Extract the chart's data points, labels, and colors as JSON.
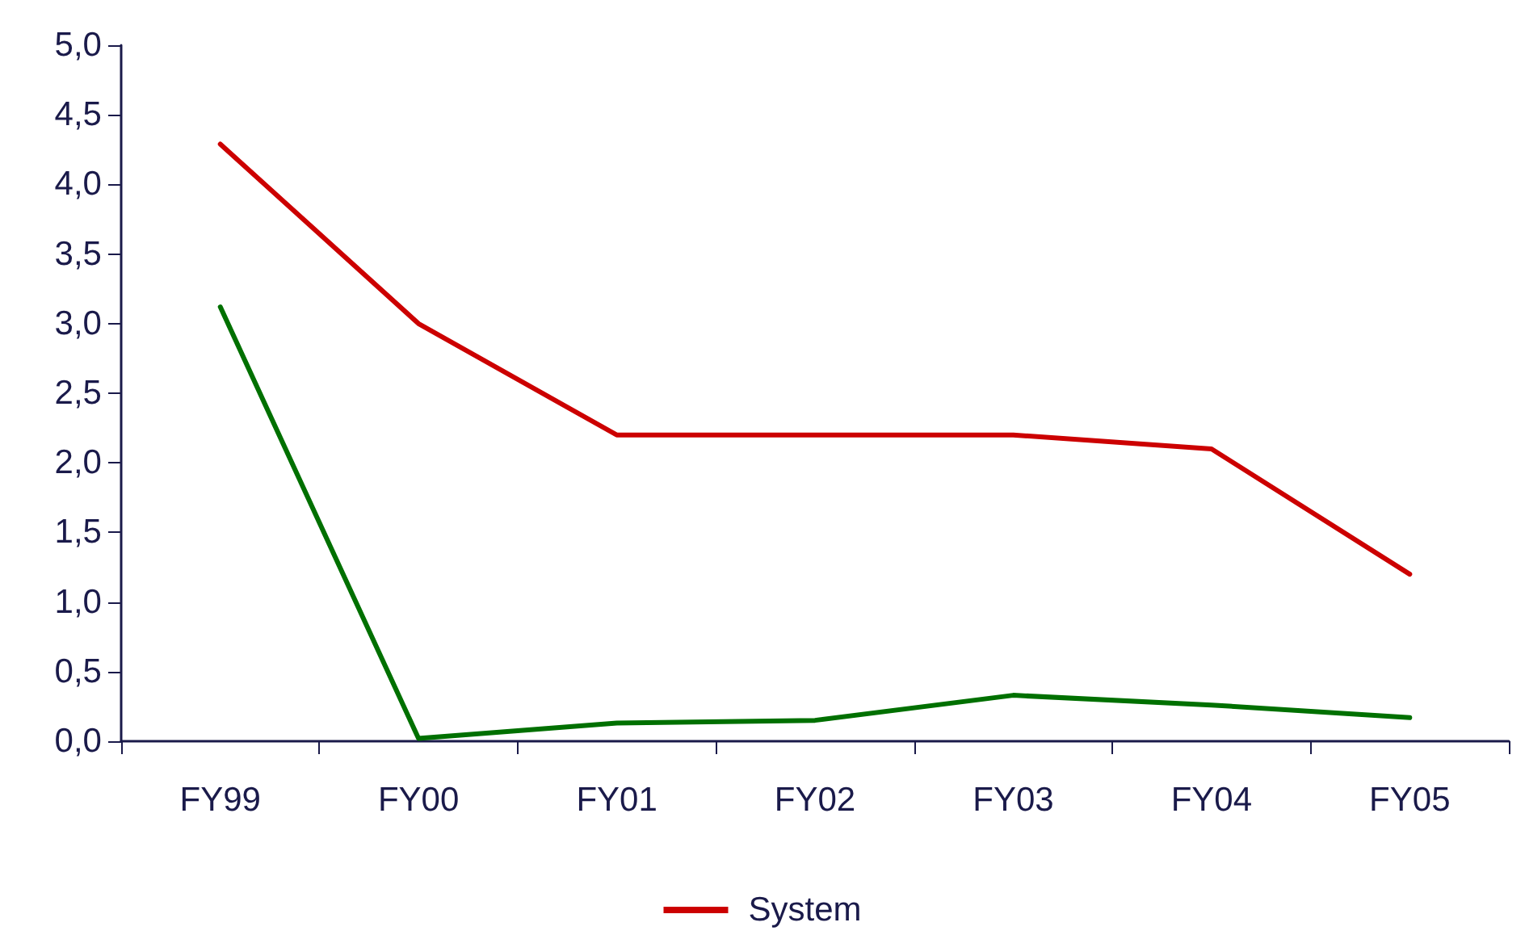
{
  "chart_data": {
    "type": "line",
    "categories": [
      "FY99",
      "FY00",
      "FY01",
      "FY02",
      "FY03",
      "FY04",
      "FY05"
    ],
    "series": [
      {
        "color": "#007000",
        "values": [
          3.12,
          0.02,
          0.13,
          0.15,
          0.33,
          0.26,
          0.17
        ]
      },
      {
        "name": "System",
        "color": "#cc0000",
        "values": [
          4.29,
          3.0,
          2.2,
          2.2,
          2.2,
          2.1,
          1.2
        ]
      }
    ],
    "ylim": [
      0,
      5
    ],
    "yticks": [
      {
        "value": 0,
        "label": "0,0"
      },
      {
        "value": 0.5,
        "label": "0,5"
      },
      {
        "value": 1,
        "label": "1,0"
      },
      {
        "value": 1.5,
        "label": "1,5"
      },
      {
        "value": 2,
        "label": "2,0"
      },
      {
        "value": 2.5,
        "label": "2,5"
      },
      {
        "value": 3,
        "label": "3,0"
      },
      {
        "value": 3.5,
        "label": "3,5"
      },
      {
        "value": 4,
        "label": "4,0"
      },
      {
        "value": 4.5,
        "label": "4,5"
      },
      {
        "value": 5,
        "label": "5,0"
      }
    ],
    "grid": false,
    "legend": "bottom",
    "marker": "none",
    "line_style": "solid"
  }
}
